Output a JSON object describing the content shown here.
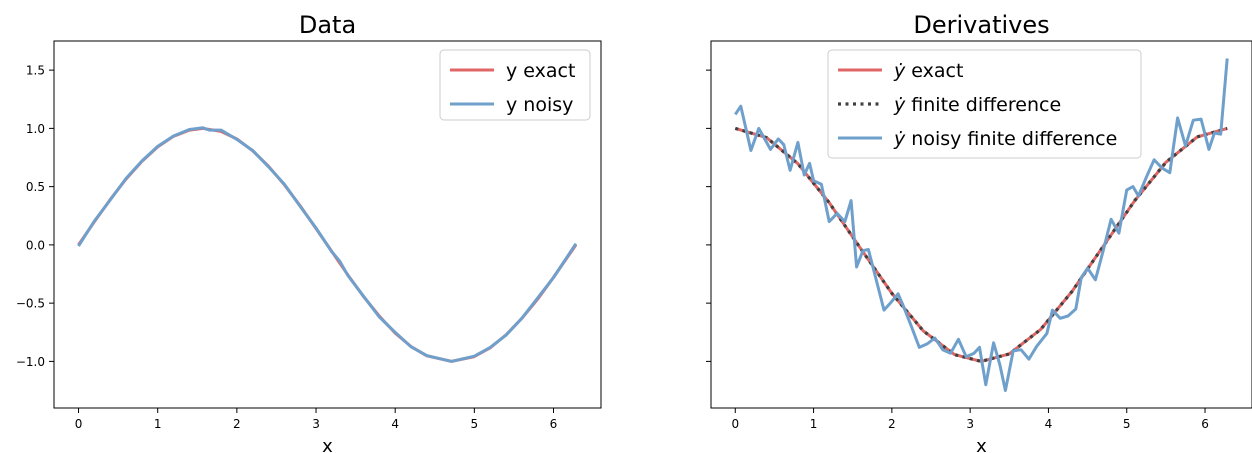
{
  "chart_data": [
    {
      "type": "line",
      "title": "Data",
      "xlabel": "x",
      "ylabel": "",
      "xlim": [
        -0.31,
        6.6
      ],
      "ylim": [
        -1.4,
        1.75
      ],
      "xticks": [
        0,
        1,
        2,
        3,
        4,
        5,
        6
      ],
      "xtick_labels": [
        "0",
        "1",
        "2",
        "3",
        "4",
        "5",
        "6"
      ],
      "yticks": [
        -1.0,
        -0.5,
        0.0,
        0.5,
        1.0,
        1.5
      ],
      "ytick_labels": [
        "−1.0",
        "−0.5",
        "0.0",
        "0.5",
        "1.0",
        "1.5"
      ],
      "grid": false,
      "legend": "top-right",
      "series": [
        {
          "name": "y exact",
          "color": "#e06666",
          "x": [
            0.0,
            0.2,
            0.4,
            0.6,
            0.8,
            1.0,
            1.2,
            1.4,
            1.571,
            1.8,
            2.0,
            2.2,
            2.4,
            2.6,
            2.8,
            3.0,
            3.2,
            3.4,
            3.6,
            3.8,
            4.0,
            4.2,
            4.4,
            4.712,
            5.0,
            5.2,
            5.4,
            5.6,
            5.8,
            6.0,
            6.283
          ],
          "y": [
            0.0,
            0.199,
            0.389,
            0.565,
            0.717,
            0.841,
            0.932,
            0.985,
            1.0,
            0.974,
            0.909,
            0.808,
            0.675,
            0.516,
            0.335,
            0.141,
            -0.058,
            -0.256,
            -0.443,
            -0.612,
            -0.757,
            -0.872,
            -0.952,
            -1.0,
            -0.959,
            -0.883,
            -0.773,
            -0.631,
            -0.465,
            -0.279,
            0.0
          ]
        },
        {
          "name": "y noisy",
          "color": "#6fa0cc",
          "x": [
            0.0,
            0.2,
            0.4,
            0.6,
            0.8,
            1.0,
            1.2,
            1.4,
            1.571,
            1.65,
            1.8,
            2.0,
            2.2,
            2.4,
            2.6,
            2.8,
            3.0,
            3.2,
            3.3,
            3.4,
            3.6,
            3.8,
            4.0,
            4.2,
            4.4,
            4.712,
            5.0,
            5.2,
            5.4,
            5.6,
            5.8,
            6.0,
            6.283
          ],
          "y": [
            -0.01,
            0.205,
            0.385,
            0.57,
            0.72,
            0.845,
            0.935,
            0.99,
            1.005,
            0.985,
            0.985,
            0.905,
            0.81,
            0.67,
            0.52,
            0.33,
            0.145,
            -0.06,
            -0.14,
            -0.26,
            -0.44,
            -0.62,
            -0.75,
            -0.875,
            -0.95,
            -1.0,
            -0.955,
            -0.88,
            -0.775,
            -0.63,
            -0.455,
            -0.28,
            0.01
          ]
        }
      ]
    },
    {
      "type": "line",
      "title": "Derivatives",
      "xlabel": "x",
      "ylabel": "",
      "xlim": [
        -0.31,
        6.6
      ],
      "ylim": [
        -1.4,
        1.75
      ],
      "xticks": [
        0,
        1,
        2,
        3,
        4,
        5,
        6
      ],
      "xtick_labels": [
        "0",
        "1",
        "2",
        "3",
        "4",
        "5",
        "6"
      ],
      "yticks": [
        -1.0,
        -0.5,
        0.0,
        0.5,
        1.0,
        1.5
      ],
      "grid": false,
      "legend": "top-center",
      "series": [
        {
          "name": "exact",
          "legend_prefix": "ẏ",
          "style": "solid",
          "color": "#e06666",
          "x": [
            0.0,
            0.4,
            0.8,
            1.2,
            1.6,
            2.0,
            2.4,
            2.8,
            3.1416,
            3.5,
            3.9,
            4.3,
            4.7,
            5.1,
            5.5,
            5.9,
            6.283
          ],
          "y": [
            1.0,
            0.921,
            0.697,
            0.362,
            -0.029,
            -0.416,
            -0.737,
            -0.942,
            -1.0,
            -0.936,
            -0.726,
            -0.401,
            -0.012,
            0.378,
            0.709,
            0.927,
            1.0
          ]
        },
        {
          "name": "finite difference",
          "legend_prefix": "ẏ",
          "style": "dotted",
          "color": "#404040",
          "x": [
            0.0,
            0.4,
            0.8,
            1.2,
            1.6,
            2.0,
            2.4,
            2.8,
            3.1416,
            3.5,
            3.9,
            4.3,
            4.7,
            5.1,
            5.5,
            5.9,
            6.283
          ],
          "y": [
            1.0,
            0.921,
            0.697,
            0.362,
            -0.029,
            -0.416,
            -0.737,
            -0.942,
            -1.0,
            -0.936,
            -0.726,
            -0.401,
            -0.012,
            0.378,
            0.709,
            0.927,
            1.0
          ]
        },
        {
          "name": "noisy finite difference",
          "legend_prefix": "ẏ",
          "style": "solid",
          "color": "#6fa0cc",
          "x": [
            0.0,
            0.07,
            0.2,
            0.3,
            0.45,
            0.55,
            0.62,
            0.7,
            0.8,
            0.88,
            0.95,
            1.0,
            1.1,
            1.2,
            1.3,
            1.4,
            1.48,
            1.55,
            1.63,
            1.7,
            1.8,
            1.9,
            1.98,
            2.08,
            2.15,
            2.25,
            2.35,
            2.45,
            2.55,
            2.65,
            2.75,
            2.85,
            2.95,
            3.05,
            3.12,
            3.2,
            3.3,
            3.38,
            3.45,
            3.55,
            3.65,
            3.75,
            3.85,
            3.98,
            4.05,
            4.15,
            4.25,
            4.35,
            4.42,
            4.5,
            4.6,
            4.7,
            4.8,
            4.9,
            5.0,
            5.08,
            5.15,
            5.25,
            5.35,
            5.45,
            5.55,
            5.65,
            5.75,
            5.85,
            5.95,
            6.05,
            6.12,
            6.2,
            6.283
          ],
          "y": [
            1.12,
            1.19,
            0.81,
            1.0,
            0.82,
            0.91,
            0.86,
            0.64,
            0.88,
            0.6,
            0.7,
            0.55,
            0.52,
            0.2,
            0.27,
            0.2,
            0.38,
            -0.19,
            -0.05,
            -0.04,
            -0.3,
            -0.56,
            -0.5,
            -0.42,
            -0.53,
            -0.7,
            -0.88,
            -0.85,
            -0.8,
            -0.9,
            -0.93,
            -0.81,
            -0.96,
            -0.93,
            -0.88,
            -1.2,
            -0.84,
            -1.03,
            -1.25,
            -0.91,
            -0.9,
            -0.98,
            -0.87,
            -0.76,
            -0.56,
            -0.63,
            -0.61,
            -0.55,
            -0.28,
            -0.2,
            -0.3,
            -0.05,
            0.22,
            0.1,
            0.47,
            0.5,
            0.42,
            0.58,
            0.73,
            0.66,
            0.62,
            1.09,
            0.85,
            1.07,
            1.08,
            0.82,
            0.96,
            0.95,
            1.6
          ]
        }
      ]
    }
  ]
}
